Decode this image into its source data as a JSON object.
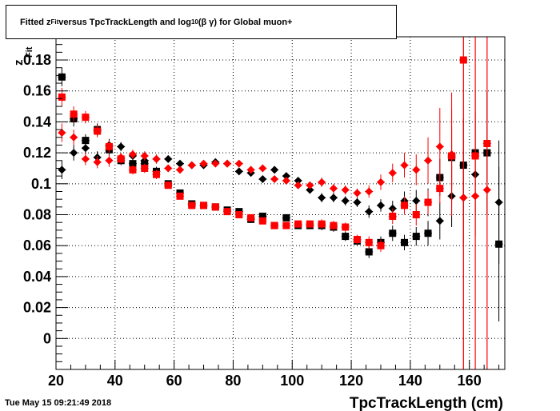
{
  "title": {
    "part1": "Fitted  z",
    "sub1": "Fit",
    "part2": "  versus TpcTrackLength and log",
    "sub2": "10",
    "part3": " (β γ) for Global muon+"
  },
  "ylabel": "z",
  "ylabel_sub": "Fit",
  "timestamp": "Tue May 15 09:21:49 2018",
  "chart_data": {
    "type": "scatter",
    "title": "Fitted z_Fit versus TpcTrackLength and log10 (β γ) for Global muon+",
    "xlabel": "TpcTrackLength (cm)",
    "ylabel": "z_Fit",
    "xlim": [
      20,
      172
    ],
    "ylim": [
      -0.02,
      0.195
    ],
    "x_ticks": [
      20,
      40,
      60,
      80,
      100,
      120,
      140,
      160
    ],
    "y_ticks": [
      0,
      0.02,
      0.04,
      0.06,
      0.08,
      0.1,
      0.12,
      0.14,
      0.16,
      0.18
    ],
    "x_tick_labels": [
      "20",
      "40",
      "60",
      "80",
      "100",
      "120",
      "140",
      "160"
    ],
    "y_tick_labels": [
      "0",
      "0.02",
      "0.04",
      "0.06",
      "0.08",
      "0.1",
      "0.12",
      "0.14",
      "0.16",
      "0.18"
    ],
    "grid": true,
    "series": [
      {
        "marker": "square",
        "color": "#000000",
        "points": [
          [
            22,
            0.169,
            0.006
          ],
          [
            26,
            0.142,
            0.005
          ],
          [
            30,
            0.128,
            0.004
          ],
          [
            34,
            0.135,
            0.004
          ],
          [
            38,
            0.122,
            0.004
          ],
          [
            42,
            0.115,
            0.003
          ],
          [
            46,
            0.113,
            0.003
          ],
          [
            50,
            0.113,
            0.003
          ],
          [
            54,
            0.108,
            0.003
          ],
          [
            58,
            0.1,
            0.002
          ],
          [
            62,
            0.094,
            0.002
          ],
          [
            66,
            0.087,
            0.002
          ],
          [
            70,
            0.086,
            0.002
          ],
          [
            74,
            0.085,
            0.002
          ],
          [
            78,
            0.083,
            0.002
          ],
          [
            82,
            0.082,
            0.002
          ],
          [
            86,
            0.077,
            0.002
          ],
          [
            90,
            0.079,
            0.002
          ],
          [
            94,
            0.073,
            0.002
          ],
          [
            98,
            0.078,
            0.002
          ],
          [
            102,
            0.073,
            0.002
          ],
          [
            106,
            0.073,
            0.002
          ],
          [
            110,
            0.073,
            0.003
          ],
          [
            114,
            0.072,
            0.003
          ],
          [
            118,
            0.066,
            0.003
          ],
          [
            122,
            0.063,
            0.003
          ],
          [
            126,
            0.056,
            0.004
          ],
          [
            130,
            0.062,
            0.004
          ],
          [
            134,
            0.068,
            0.005
          ],
          [
            138,
            0.062,
            0.005
          ],
          [
            142,
            0.066,
            0.006
          ],
          [
            146,
            0.068,
            0.008
          ],
          [
            150,
            0.104,
            0.012
          ],
          [
            154,
            0.117,
            0.02
          ],
          [
            158,
            0.112,
            0.03
          ],
          [
            162,
            0.12,
            0.04
          ],
          [
            166,
            0.12,
            0.04
          ],
          [
            170,
            0.061,
            0.05
          ]
        ]
      },
      {
        "marker": "diamond",
        "color": "#000000",
        "points": [
          [
            22,
            0.109,
            0.006
          ],
          [
            26,
            0.12,
            0.005
          ],
          [
            30,
            0.123,
            0.004
          ],
          [
            34,
            0.117,
            0.004
          ],
          [
            38,
            0.125,
            0.004
          ],
          [
            42,
            0.124,
            0.003
          ],
          [
            46,
            0.118,
            0.003
          ],
          [
            50,
            0.115,
            0.003
          ],
          [
            54,
            0.116,
            0.003
          ],
          [
            58,
            0.116,
            0.002
          ],
          [
            62,
            0.113,
            0.002
          ],
          [
            66,
            0.112,
            0.002
          ],
          [
            70,
            0.112,
            0.002
          ],
          [
            74,
            0.114,
            0.002
          ],
          [
            78,
            0.113,
            0.002
          ],
          [
            82,
            0.108,
            0.002
          ],
          [
            86,
            0.107,
            0.002
          ],
          [
            90,
            0.103,
            0.002
          ],
          [
            94,
            0.109,
            0.002
          ],
          [
            98,
            0.105,
            0.002
          ],
          [
            102,
            0.102,
            0.002
          ],
          [
            106,
            0.096,
            0.002
          ],
          [
            110,
            0.091,
            0.003
          ],
          [
            114,
            0.091,
            0.003
          ],
          [
            118,
            0.089,
            0.003
          ],
          [
            122,
            0.088,
            0.003
          ],
          [
            126,
            0.082,
            0.004
          ],
          [
            130,
            0.086,
            0.004
          ],
          [
            134,
            0.084,
            0.005
          ],
          [
            138,
            0.089,
            0.006
          ],
          [
            142,
            0.089,
            0.007
          ],
          [
            146,
            0.088,
            0.009
          ],
          [
            150,
            0.076,
            0.012
          ],
          [
            154,
            0.092,
            0.02
          ],
          [
            158,
            0.091,
            0.03
          ],
          [
            162,
            0.106,
            0.04
          ],
          [
            166,
            0.12,
            0.04
          ],
          [
            170,
            0.088,
            0.04
          ]
        ]
      },
      {
        "marker": "square",
        "color": "#ff0000",
        "points": [
          [
            22,
            0.156,
            0.006
          ],
          [
            26,
            0.145,
            0.005
          ],
          [
            30,
            0.143,
            0.004
          ],
          [
            34,
            0.134,
            0.004
          ],
          [
            38,
            0.124,
            0.004
          ],
          [
            42,
            0.116,
            0.003
          ],
          [
            46,
            0.109,
            0.003
          ],
          [
            50,
            0.11,
            0.003
          ],
          [
            54,
            0.106,
            0.003
          ],
          [
            58,
            0.099,
            0.002
          ],
          [
            62,
            0.092,
            0.002
          ],
          [
            66,
            0.086,
            0.002
          ],
          [
            70,
            0.086,
            0.002
          ],
          [
            74,
            0.085,
            0.002
          ],
          [
            78,
            0.082,
            0.002
          ],
          [
            82,
            0.08,
            0.002
          ],
          [
            86,
            0.078,
            0.002
          ],
          [
            90,
            0.076,
            0.002
          ],
          [
            94,
            0.073,
            0.002
          ],
          [
            98,
            0.073,
            0.002
          ],
          [
            102,
            0.074,
            0.002
          ],
          [
            106,
            0.074,
            0.002
          ],
          [
            110,
            0.074,
            0.003
          ],
          [
            114,
            0.073,
            0.003
          ],
          [
            118,
            0.072,
            0.003
          ],
          [
            122,
            0.064,
            0.003
          ],
          [
            126,
            0.062,
            0.004
          ],
          [
            130,
            0.06,
            0.004
          ],
          [
            134,
            0.079,
            0.005
          ],
          [
            138,
            0.086,
            0.006
          ],
          [
            142,
            0.08,
            0.007
          ],
          [
            146,
            0.088,
            0.008
          ],
          [
            150,
            0.097,
            0.01
          ],
          [
            154,
            0.118,
            0.03
          ],
          [
            158,
            0.18,
            0.25
          ],
          [
            162,
            0.118,
            0.2
          ],
          [
            166,
            0.126,
            0.2
          ]
        ]
      },
      {
        "marker": "diamond",
        "color": "#ff0000",
        "points": [
          [
            22,
            0.133,
            0.006
          ],
          [
            26,
            0.13,
            0.005
          ],
          [
            30,
            0.116,
            0.004
          ],
          [
            34,
            0.114,
            0.004
          ],
          [
            38,
            0.115,
            0.004
          ],
          [
            42,
            0.117,
            0.003
          ],
          [
            46,
            0.119,
            0.003
          ],
          [
            50,
            0.118,
            0.003
          ],
          [
            54,
            0.116,
            0.003
          ],
          [
            58,
            0.11,
            0.002
          ],
          [
            62,
            0.109,
            0.002
          ],
          [
            66,
            0.112,
            0.002
          ],
          [
            70,
            0.113,
            0.002
          ],
          [
            74,
            0.113,
            0.002
          ],
          [
            78,
            0.113,
            0.002
          ],
          [
            82,
            0.113,
            0.002
          ],
          [
            86,
            0.109,
            0.002
          ],
          [
            90,
            0.11,
            0.002
          ],
          [
            94,
            0.103,
            0.002
          ],
          [
            98,
            0.102,
            0.002
          ],
          [
            102,
            0.099,
            0.002
          ],
          [
            106,
            0.099,
            0.002
          ],
          [
            110,
            0.101,
            0.003
          ],
          [
            114,
            0.097,
            0.003
          ],
          [
            118,
            0.096,
            0.003
          ],
          [
            122,
            0.094,
            0.003
          ],
          [
            126,
            0.095,
            0.004
          ],
          [
            130,
            0.101,
            0.005
          ],
          [
            134,
            0.107,
            0.006
          ],
          [
            138,
            0.112,
            0.008
          ],
          [
            142,
            0.109,
            0.01
          ],
          [
            146,
            0.115,
            0.015
          ],
          [
            150,
            0.124,
            0.025
          ],
          [
            154,
            0.119,
            0.04
          ],
          [
            158,
            0.091,
            0.15
          ],
          [
            162,
            0.092,
            0.2
          ],
          [
            166,
            0.096,
            0.2
          ]
        ]
      }
    ]
  }
}
